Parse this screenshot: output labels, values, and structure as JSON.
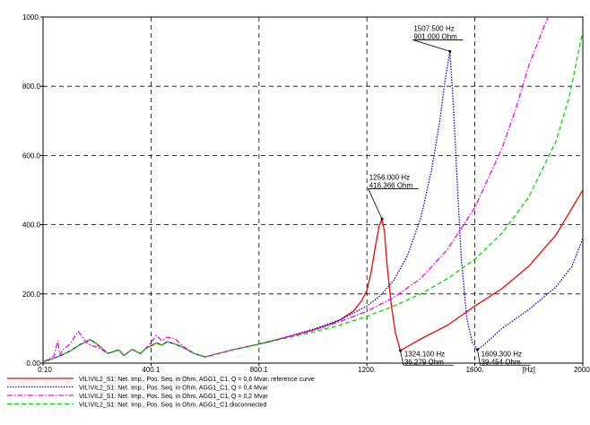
{
  "chart_data": {
    "type": "line",
    "xlabel": "",
    "x_unit": "[Hz]",
    "ylabel": "",
    "xlim": [
      0.1,
      2000
    ],
    "ylim": [
      0,
      1000
    ],
    "x_ticks": [
      0.1,
      400.1,
      800.1,
      1200,
      1600,
      2000
    ],
    "x_tick_labels": [
      "0.10",
      "400.1",
      "800.1",
      "1200.",
      "1600.",
      "[Hz]",
      "2000."
    ],
    "y_ticks": [
      0,
      200,
      400,
      600,
      800,
      1000
    ],
    "y_tick_labels": [
      "0.00",
      "200.0",
      "400.0",
      "600.0",
      "800.0",
      "1000."
    ],
    "grid": true,
    "legend_position": "bottom",
    "series": [
      {
        "name": "VIL\\VIL2_S1: Net. Imp., Pos. Seq. in Ohm, AGG1_C1, Q = 0,6 Mvar, reference curve",
        "color": "#ff0000",
        "dash": "solid",
        "x": [
          0,
          60,
          100,
          140,
          175,
          200,
          240,
          280,
          300,
          330,
          360,
          380,
          400,
          420,
          440,
          460,
          490,
          520,
          560,
          600,
          700,
          800,
          900,
          1000,
          1050,
          1100,
          1150,
          1180,
          1200,
          1215,
          1230,
          1245,
          1256,
          1265,
          1275,
          1290,
          1305,
          1324,
          1350,
          1400,
          1500,
          1600,
          1700,
          1800,
          1900,
          2000
        ],
        "y": [
          3,
          20,
          35,
          55,
          68,
          55,
          28,
          38,
          22,
          40,
          28,
          42,
          50,
          58,
          52,
          62,
          55,
          45,
          28,
          18,
          38,
          55,
          75,
          95,
          108,
          125,
          150,
          180,
          210,
          260,
          330,
          395,
          416,
          380,
          280,
          170,
          90,
          36,
          48,
          70,
          110,
          165,
          215,
          280,
          370,
          500
        ]
      },
      {
        "name": "VIL\\VIL2_S1: Net. Imp., Pos. Seq. in Ohm, AGG1_C1, Q = 0,4 Mvar",
        "color": "#0000ff",
        "dash": "dotted",
        "x": [
          0,
          60,
          100,
          140,
          175,
          200,
          240,
          280,
          300,
          330,
          360,
          380,
          400,
          420,
          440,
          460,
          490,
          520,
          560,
          600,
          700,
          800,
          900,
          1000,
          1100,
          1200,
          1250,
          1300,
          1350,
          1400,
          1440,
          1470,
          1490,
          1507.5,
          1520,
          1535,
          1550,
          1570,
          1590,
          1609.3,
          1630,
          1700,
          1800,
          1900,
          1960,
          2000
        ],
        "y": [
          3,
          20,
          35,
          55,
          68,
          55,
          28,
          38,
          22,
          40,
          28,
          42,
          50,
          58,
          52,
          62,
          55,
          45,
          28,
          18,
          38,
          55,
          75,
          98,
          125,
          165,
          195,
          240,
          310,
          420,
          560,
          700,
          820,
          901,
          750,
          520,
          300,
          130,
          60,
          39,
          50,
          100,
          155,
          220,
          280,
          360
        ]
      },
      {
        "name": "VIL\\VIL2_S1: Net. Imp., Pos. Seq. in Ohm, AGG1_C1, Q = 0,2 Mvar",
        "color": "#ff00ff",
        "dash": "dashdot",
        "x": [
          0,
          40,
          55,
          62,
          75,
          100,
          130,
          160,
          180,
          200,
          240,
          280,
          300,
          330,
          360,
          380,
          400,
          420,
          440,
          460,
          490,
          520,
          560,
          600,
          700,
          800,
          900,
          1000,
          1100,
          1200,
          1300,
          1400,
          1500,
          1600,
          1700,
          1750,
          1800,
          1860,
          1900
        ],
        "y": [
          3,
          20,
          65,
          25,
          40,
          55,
          92,
          60,
          50,
          48,
          28,
          38,
          22,
          40,
          28,
          42,
          60,
          80,
          65,
          75,
          70,
          48,
          28,
          18,
          38,
          55,
          75,
          95,
          120,
          150,
          190,
          245,
          330,
          450,
          620,
          730,
          860,
          980,
          1050
        ]
      },
      {
        "name": "VIL\\VIL2_S1: Net. Imp., Pos. Seq. in Ohm, AGG1_C1 disconnected",
        "color": "#00dd00",
        "dash": "dashed",
        "x": [
          0,
          60,
          100,
          140,
          175,
          200,
          240,
          280,
          300,
          330,
          360,
          380,
          400,
          420,
          440,
          460,
          490,
          520,
          560,
          600,
          700,
          800,
          900,
          1000,
          1100,
          1200,
          1300,
          1400,
          1500,
          1600,
          1700,
          1800,
          1900,
          1950,
          2000
        ],
        "y": [
          3,
          20,
          35,
          55,
          68,
          55,
          28,
          38,
          22,
          40,
          28,
          42,
          50,
          58,
          52,
          62,
          55,
          45,
          28,
          18,
          38,
          55,
          72,
          90,
          110,
          135,
          165,
          200,
          245,
          300,
          375,
          480,
          640,
          770,
          960
        ]
      }
    ],
    "annotations": [
      {
        "x": 1507.5,
        "y": 901,
        "lines": [
          "1507.500 Hz",
          "901.000 Ohm"
        ],
        "label_x": 1370,
        "label_y": 960
      },
      {
        "x": 1256,
        "y": 416.366,
        "lines": [
          "1256.000 Hz",
          "416.366 Ohm"
        ],
        "label_x": 1205,
        "label_y": 530
      },
      {
        "x": 1324.1,
        "y": 36.279,
        "lines": [
          "1324.100 Hz",
          "36.279 Ohm"
        ],
        "label_x": 1335,
        "label_y": 20
      },
      {
        "x": 1609.3,
        "y": 39.454,
        "lines": [
          "1609.300 Hz",
          "39.454 Ohm"
        ],
        "label_x": 1620,
        "label_y": 20
      }
    ]
  }
}
